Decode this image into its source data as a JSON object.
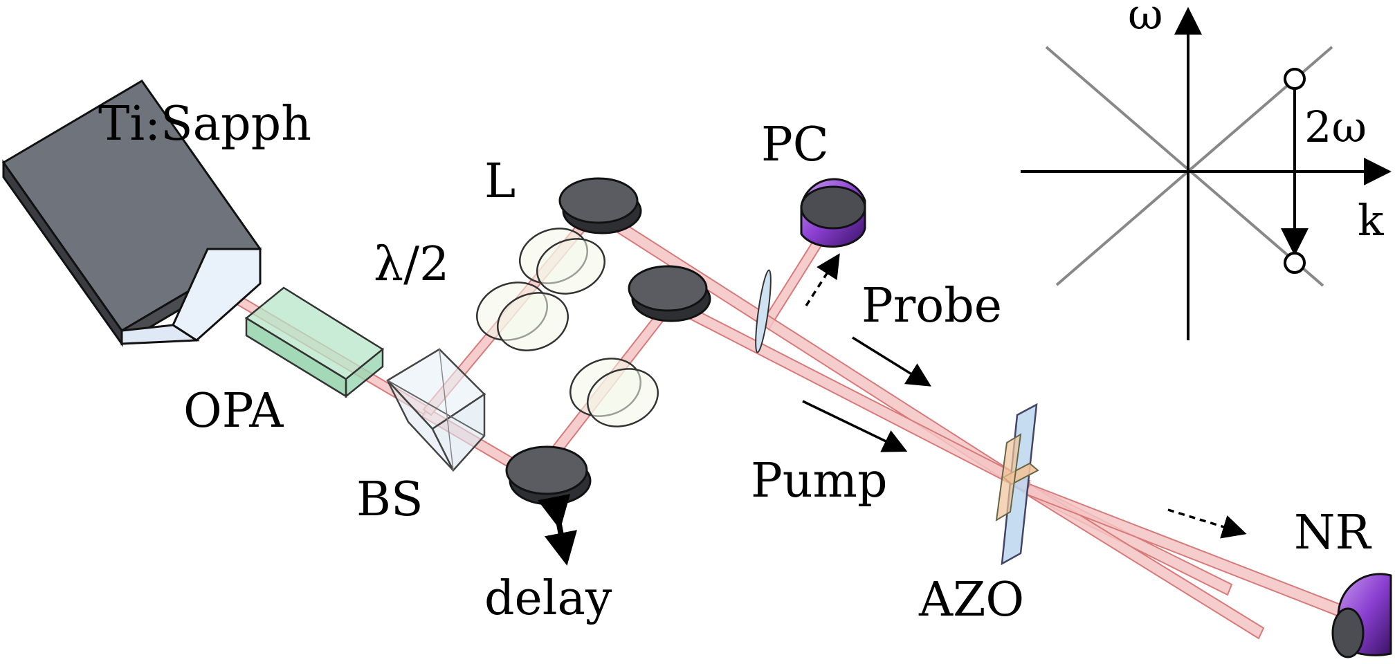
{
  "labels": {
    "laser": "Ti:Sapph",
    "opa": "OPA",
    "beam_splitter": "BS",
    "half_wave_plate": "λ/2",
    "lens": "L",
    "photodetector": "PC",
    "probe": "Probe",
    "pump": "Pump",
    "delay": "delay",
    "sample": "AZO",
    "nonlinear_receiver": "NR"
  },
  "inset": {
    "y_axis_label": "ω",
    "x_axis_label": "k",
    "transition_label": "2ω"
  },
  "colors": {
    "beam": "#f4c4c4",
    "laser_body": "#5d6068",
    "opa_body": "#b6e6c8",
    "detector": "#8a3fd1",
    "sample_blue": "#bcd6ee",
    "sample_orange": "#f1c39a"
  }
}
